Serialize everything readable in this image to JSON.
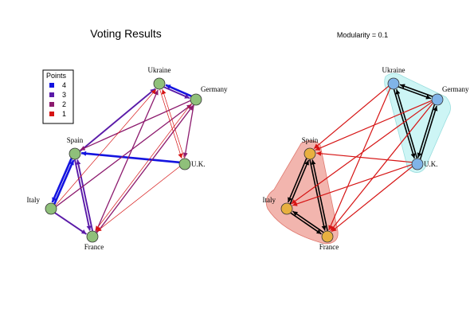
{
  "left_panel": {
    "title": "Voting Results",
    "legend": {
      "title": "Points",
      "entries": [
        {
          "label": "4",
          "color": "#1414e0"
        },
        {
          "label": "3",
          "color": "#5a1aa8"
        },
        {
          "label": "2",
          "color": "#8c1a6e"
        },
        {
          "label": "1",
          "color": "#d61414"
        }
      ]
    },
    "node_color": "#8fc07a",
    "edges": [
      {
        "from": "germany",
        "to": "ukraine",
        "points": 4
      },
      {
        "from": "uk",
        "to": "spain",
        "points": 4
      },
      {
        "from": "italy",
        "to": "spain",
        "points": 4
      },
      {
        "from": "spain",
        "to": "italy",
        "points": 4
      },
      {
        "from": "spain",
        "to": "ukraine",
        "points": 3
      },
      {
        "from": "italy",
        "to": "france",
        "points": 3
      },
      {
        "from": "france",
        "to": "spain",
        "points": 3
      },
      {
        "from": "spain",
        "to": "france",
        "points": 3
      },
      {
        "from": "germany",
        "to": "spain",
        "points": 2
      },
      {
        "from": "germany",
        "to": "uk",
        "points": 2
      },
      {
        "from": "italy",
        "to": "germany",
        "points": 2
      },
      {
        "from": "france",
        "to": "germany",
        "points": 2
      },
      {
        "from": "france",
        "to": "ukraine",
        "points": 2
      },
      {
        "from": "ukraine",
        "to": "germany",
        "points": 3
      },
      {
        "from": "uk",
        "to": "ukraine",
        "points": 1
      },
      {
        "from": "ukraine",
        "to": "uk",
        "points": 1
      },
      {
        "from": "germany",
        "to": "france",
        "points": 1
      },
      {
        "from": "uk",
        "to": "france",
        "points": 1
      },
      {
        "from": "italy",
        "to": "ukraine",
        "points": 1
      }
    ]
  },
  "right_panel": {
    "title": "Modularity =  0.1",
    "community_colors": {
      "a": "#e8b040",
      "b": "#80b4e8"
    },
    "hull_colors": {
      "a": "#f0a8a0",
      "b": "#c8f4f4"
    },
    "edges": [
      {
        "from": "ukraine",
        "to": "germany",
        "intra": true
      },
      {
        "from": "germany",
        "to": "ukraine",
        "intra": true
      },
      {
        "from": "ukraine",
        "to": "uk",
        "intra": true
      },
      {
        "from": "uk",
        "to": "ukraine",
        "intra": true
      },
      {
        "from": "germany",
        "to": "uk",
        "intra": true
      },
      {
        "from": "uk",
        "to": "germany",
        "intra": true
      },
      {
        "from": "spain",
        "to": "italy",
        "intra": true
      },
      {
        "from": "italy",
        "to": "spain",
        "intra": true
      },
      {
        "from": "spain",
        "to": "france",
        "intra": true
      },
      {
        "from": "france",
        "to": "spain",
        "intra": true
      },
      {
        "from": "italy",
        "to": "france",
        "intra": true
      },
      {
        "from": "france",
        "to": "italy",
        "intra": true
      },
      {
        "from": "germany",
        "to": "spain",
        "intra": false
      },
      {
        "from": "uk",
        "to": "spain",
        "intra": false
      },
      {
        "from": "ukraine",
        "to": "spain",
        "intra": false
      },
      {
        "from": "uk",
        "to": "italy",
        "intra": false
      },
      {
        "from": "germany",
        "to": "italy",
        "intra": false
      },
      {
        "from": "germany",
        "to": "france",
        "intra": false
      },
      {
        "from": "ukraine",
        "to": "france",
        "intra": false
      },
      {
        "from": "uk",
        "to": "france",
        "intra": false
      }
    ]
  },
  "nodes": [
    {
      "id": "ukraine",
      "label": "Ukraine",
      "community": "b"
    },
    {
      "id": "germany",
      "label": "Germany",
      "community": "b"
    },
    {
      "id": "spain",
      "label": "Spain",
      "community": "a"
    },
    {
      "id": "uk",
      "label": "U.K.",
      "community": "b"
    },
    {
      "id": "italy",
      "label": "Italy",
      "community": "a"
    },
    {
      "id": "france",
      "label": "France",
      "community": "a"
    }
  ]
}
